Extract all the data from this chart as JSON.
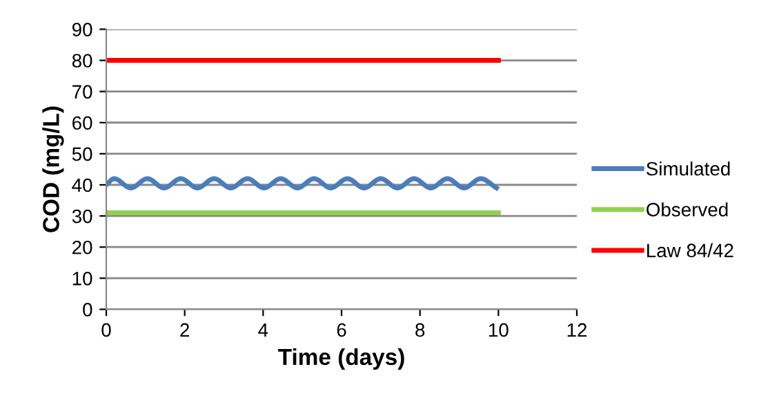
{
  "chart_data": {
    "type": "line",
    "xlabel": "Time (days)",
    "ylabel": "COD (mg/L)",
    "xlim": [
      0,
      12
    ],
    "xticks": [
      0,
      2,
      4,
      6,
      8,
      10,
      12
    ],
    "ylim": [
      0,
      90
    ],
    "yticks": [
      0,
      10,
      20,
      30,
      40,
      50,
      60,
      70,
      80,
      90
    ],
    "grid": "y",
    "legend": "right",
    "marker": "none",
    "line_style": "solid",
    "series": [
      {
        "name": "Simulated",
        "color": "#4a7ebb",
        "x": [
          0,
          0.2,
          0.625,
          1.05,
          1.475,
          1.9,
          2.325,
          2.75,
          3.175,
          3.6,
          4.025,
          4.45,
          4.875,
          5.3,
          5.725,
          6.15,
          6.575,
          7.0,
          7.425,
          7.85,
          8.275,
          8.7,
          9.125,
          9.55,
          9.95
        ],
        "values": [
          40,
          42,
          39,
          42,
          39,
          42,
          39,
          42,
          39,
          42,
          39,
          42,
          39,
          42,
          39,
          42,
          39,
          42,
          39,
          42,
          39,
          42,
          39,
          42,
          39
        ]
      },
      {
        "name": "Observed",
        "color": "#92d050",
        "x": [
          0,
          10
        ],
        "values": [
          31,
          31
        ]
      },
      {
        "name": "Law 84/42",
        "color": "#ff0000",
        "x": [
          0,
          10
        ],
        "values": [
          80,
          80
        ]
      }
    ]
  }
}
